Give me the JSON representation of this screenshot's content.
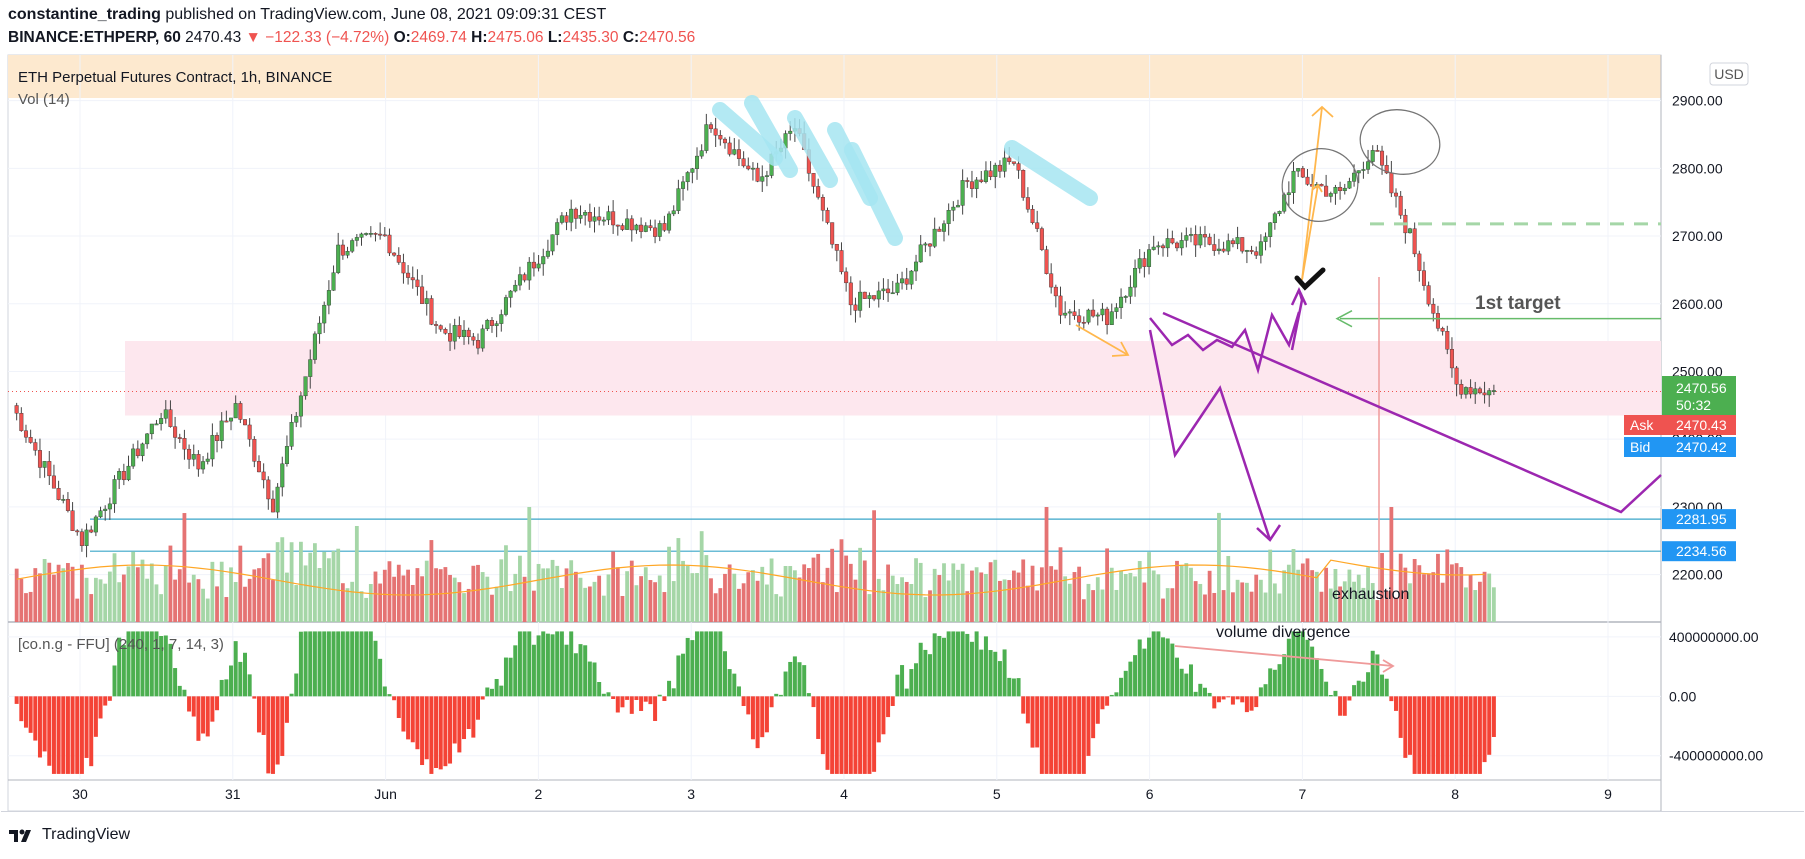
{
  "header": {
    "author": "constantine_trading",
    "published_text": "published on TradingView.com, June 08, 2021 09:09:31 CEST",
    "symbol_line": "BINANCE:ETHPERP, 60",
    "last": "2470.43",
    "change": "▼ −122.33 (−4.72%)",
    "o_label": "O:",
    "o": "2469.74",
    "h_label": "H:",
    "h": "2475.06",
    "l_label": "L:",
    "l": "2435.30",
    "c_label": "C:",
    "c": "2470.56"
  },
  "pane": {
    "title": "ETH Perpetual Futures Contract, 1h, BINANCE",
    "vol_label": "Vol (14)",
    "currency": "USD",
    "indicator_label": "[co.n.g - FFU] (240, 1, 7, 14, 3)"
  },
  "price_labels": {
    "last_price": "2470.56",
    "countdown": "50:32",
    "ask_label": "Ask",
    "ask": "2470.43",
    "bid_label": "Bid",
    "bid": "2470.42",
    "level1": "2281.95",
    "level2": "2234.56"
  },
  "annotations": {
    "target": "1st target",
    "exhaustion": "exhaustion",
    "volume_divergence": "volume divergence"
  },
  "colors": {
    "up": "#26a69a",
    "up_fill": "#4caf50",
    "down": "#ef5350",
    "vol_up": "#a5d6a7",
    "vol_down": "#e57373",
    "zone": "#fde7ee",
    "header_band": "#fde9cf",
    "hline": "#3aa6c8",
    "purple": "#9c27b0",
    "cyan_marks": "#a6e6f2",
    "orange_marks": "#ffb74d",
    "ask_bg": "#ef5350",
    "bid_bg": "#2196f3",
    "last_bg": "#4caf50"
  },
  "footer": {
    "brand": "TradingView"
  },
  "chart_data": {
    "type": "candlestick",
    "symbol": "BINANCE:ETHPERP",
    "interval": "1h",
    "x_ticks": [
      "30",
      "31",
      "Jun",
      "2",
      "3",
      "4",
      "5",
      "6",
      "7",
      "8",
      "9"
    ],
    "y_ticks": [
      "2900.00",
      "2800.00",
      "2700.00",
      "2600.00",
      "2500.00",
      "2400.00",
      "2300.00",
      "2200.00"
    ],
    "ylim": [
      2130,
      2960
    ],
    "indicator_ticks": [
      "400000000.00",
      "0.00",
      "-400000000.00"
    ],
    "indicator_ylim": [
      -550000000,
      460000000
    ],
    "horizontal_levels": [
      2281.95,
      2234.56
    ],
    "support_zone": [
      2435,
      2545
    ],
    "resistance_level": 2718,
    "target_level": 2578,
    "anchors": [
      {
        "x": 0,
        "p": 2450
      },
      {
        "x": 15,
        "p": 2250
      },
      {
        "x": 32,
        "p": 2440
      },
      {
        "x": 40,
        "p": 2360
      },
      {
        "x": 48,
        "p": 2450
      },
      {
        "x": 56,
        "p": 2305
      },
      {
        "x": 70,
        "p": 2680
      },
      {
        "x": 80,
        "p": 2700
      },
      {
        "x": 92,
        "p": 2560
      },
      {
        "x": 100,
        "p": 2545
      },
      {
        "x": 120,
        "p": 2740
      },
      {
        "x": 140,
        "p": 2710
      },
      {
        "x": 150,
        "p": 2870
      },
      {
        "x": 160,
        "p": 2780
      },
      {
        "x": 168,
        "p": 2860
      },
      {
        "x": 180,
        "p": 2600
      },
      {
        "x": 190,
        "p": 2620
      },
      {
        "x": 205,
        "p": 2780
      },
      {
        "x": 215,
        "p": 2810
      },
      {
        "x": 225,
        "p": 2590
      },
      {
        "x": 235,
        "p": 2580
      },
      {
        "x": 245,
        "p": 2690
      },
      {
        "x": 258,
        "p": 2690
      },
      {
        "x": 268,
        "p": 2680
      },
      {
        "x": 275,
        "p": 2790
      },
      {
        "x": 285,
        "p": 2760
      },
      {
        "x": 292,
        "p": 2830
      },
      {
        "x": 300,
        "p": 2700
      },
      {
        "x": 310,
        "p": 2480
      },
      {
        "x": 318,
        "p": 2470
      }
    ]
  }
}
